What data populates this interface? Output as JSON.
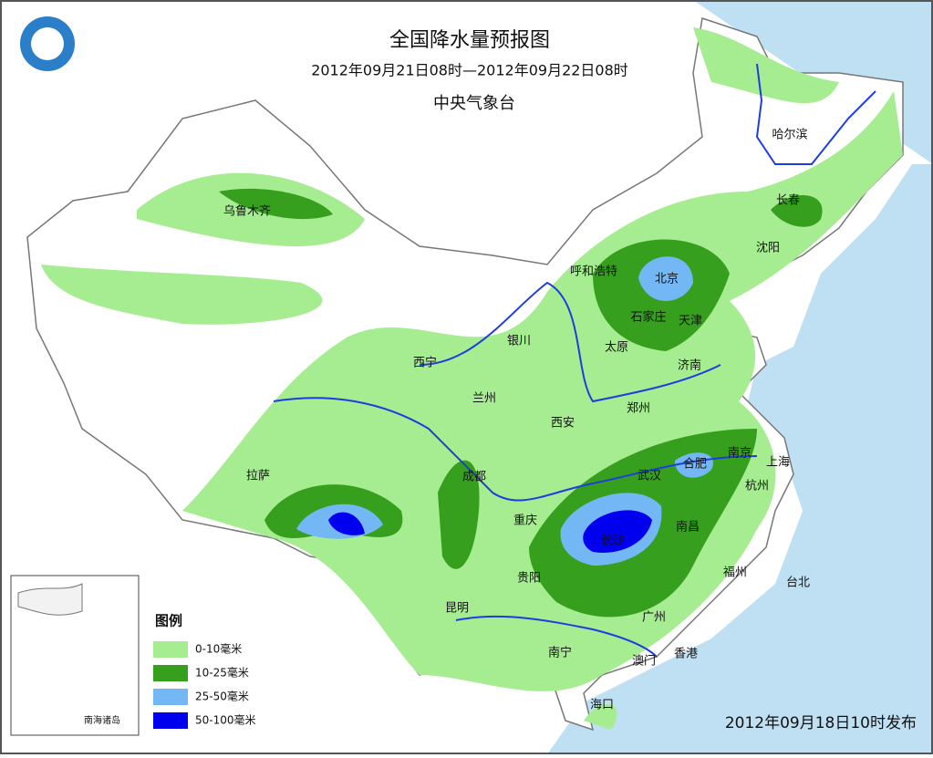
{
  "header": {
    "title": "全国降水量预报图",
    "subtitle": "2012年09月21日08时—2012年09月22日08时",
    "issuer": "中央气象台"
  },
  "cities": [
    "哈尔滨",
    "长春",
    "沈阳",
    "呼和浩特",
    "北京",
    "石家庄",
    "天津",
    "太原",
    "济南",
    "银川",
    "西宁",
    "兰州",
    "郑州",
    "西安",
    "乌鲁木齐",
    "拉萨",
    "成都",
    "重庆",
    "武汉",
    "合肥",
    "南京",
    "上海",
    "杭州",
    "长沙",
    "南昌",
    "贵阳",
    "昆明",
    "福州",
    "台北",
    "广州",
    "南宁",
    "澳门",
    "香港",
    "海口"
  ],
  "legend": {
    "title": "图例",
    "items": [
      "0-10毫米",
      "10-25毫米",
      "25-50毫米",
      "50-100毫米"
    ]
  },
  "inset": {
    "label": "南海诸岛"
  },
  "issued": "2012年09月18日10时发布"
}
